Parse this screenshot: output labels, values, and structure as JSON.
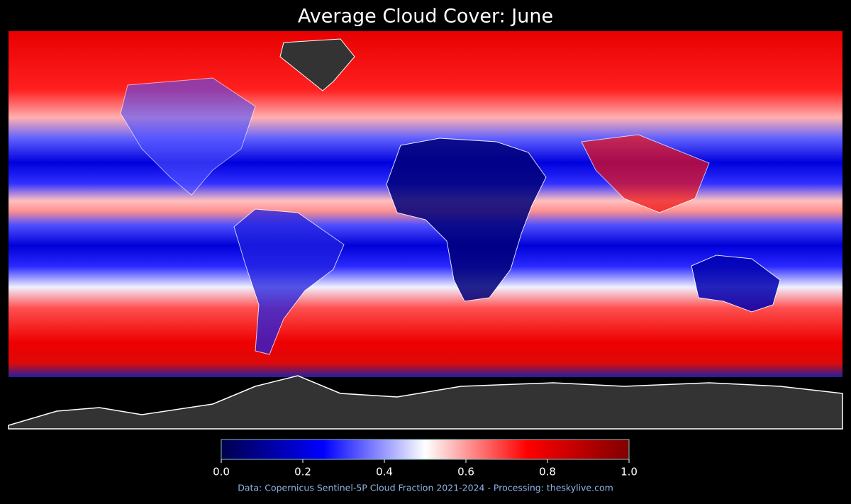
{
  "map": {
    "title": "Average Cloud Cover: June",
    "colorbar": {
      "lim": [
        0,
        1
      ],
      "colors": [
        "#00004c",
        "#0000ff",
        "#ffffff",
        "#ff0000",
        "#800000"
      ],
      "ticks": [
        {
          "value": 0,
          "label": "0.0"
        },
        {
          "value": 0.2,
          "label": "0.2"
        },
        {
          "value": 0.4,
          "label": "0.4"
        },
        {
          "value": 0.6,
          "label": "0.6"
        },
        {
          "value": 0.8,
          "label": "0.8"
        },
        {
          "value": 1,
          "label": "1.0"
        }
      ]
    },
    "credit": "Data: Copernicus Sentinel-5P Cloud Fraction 2021-2024 - Processing: theskylive.com"
  }
}
